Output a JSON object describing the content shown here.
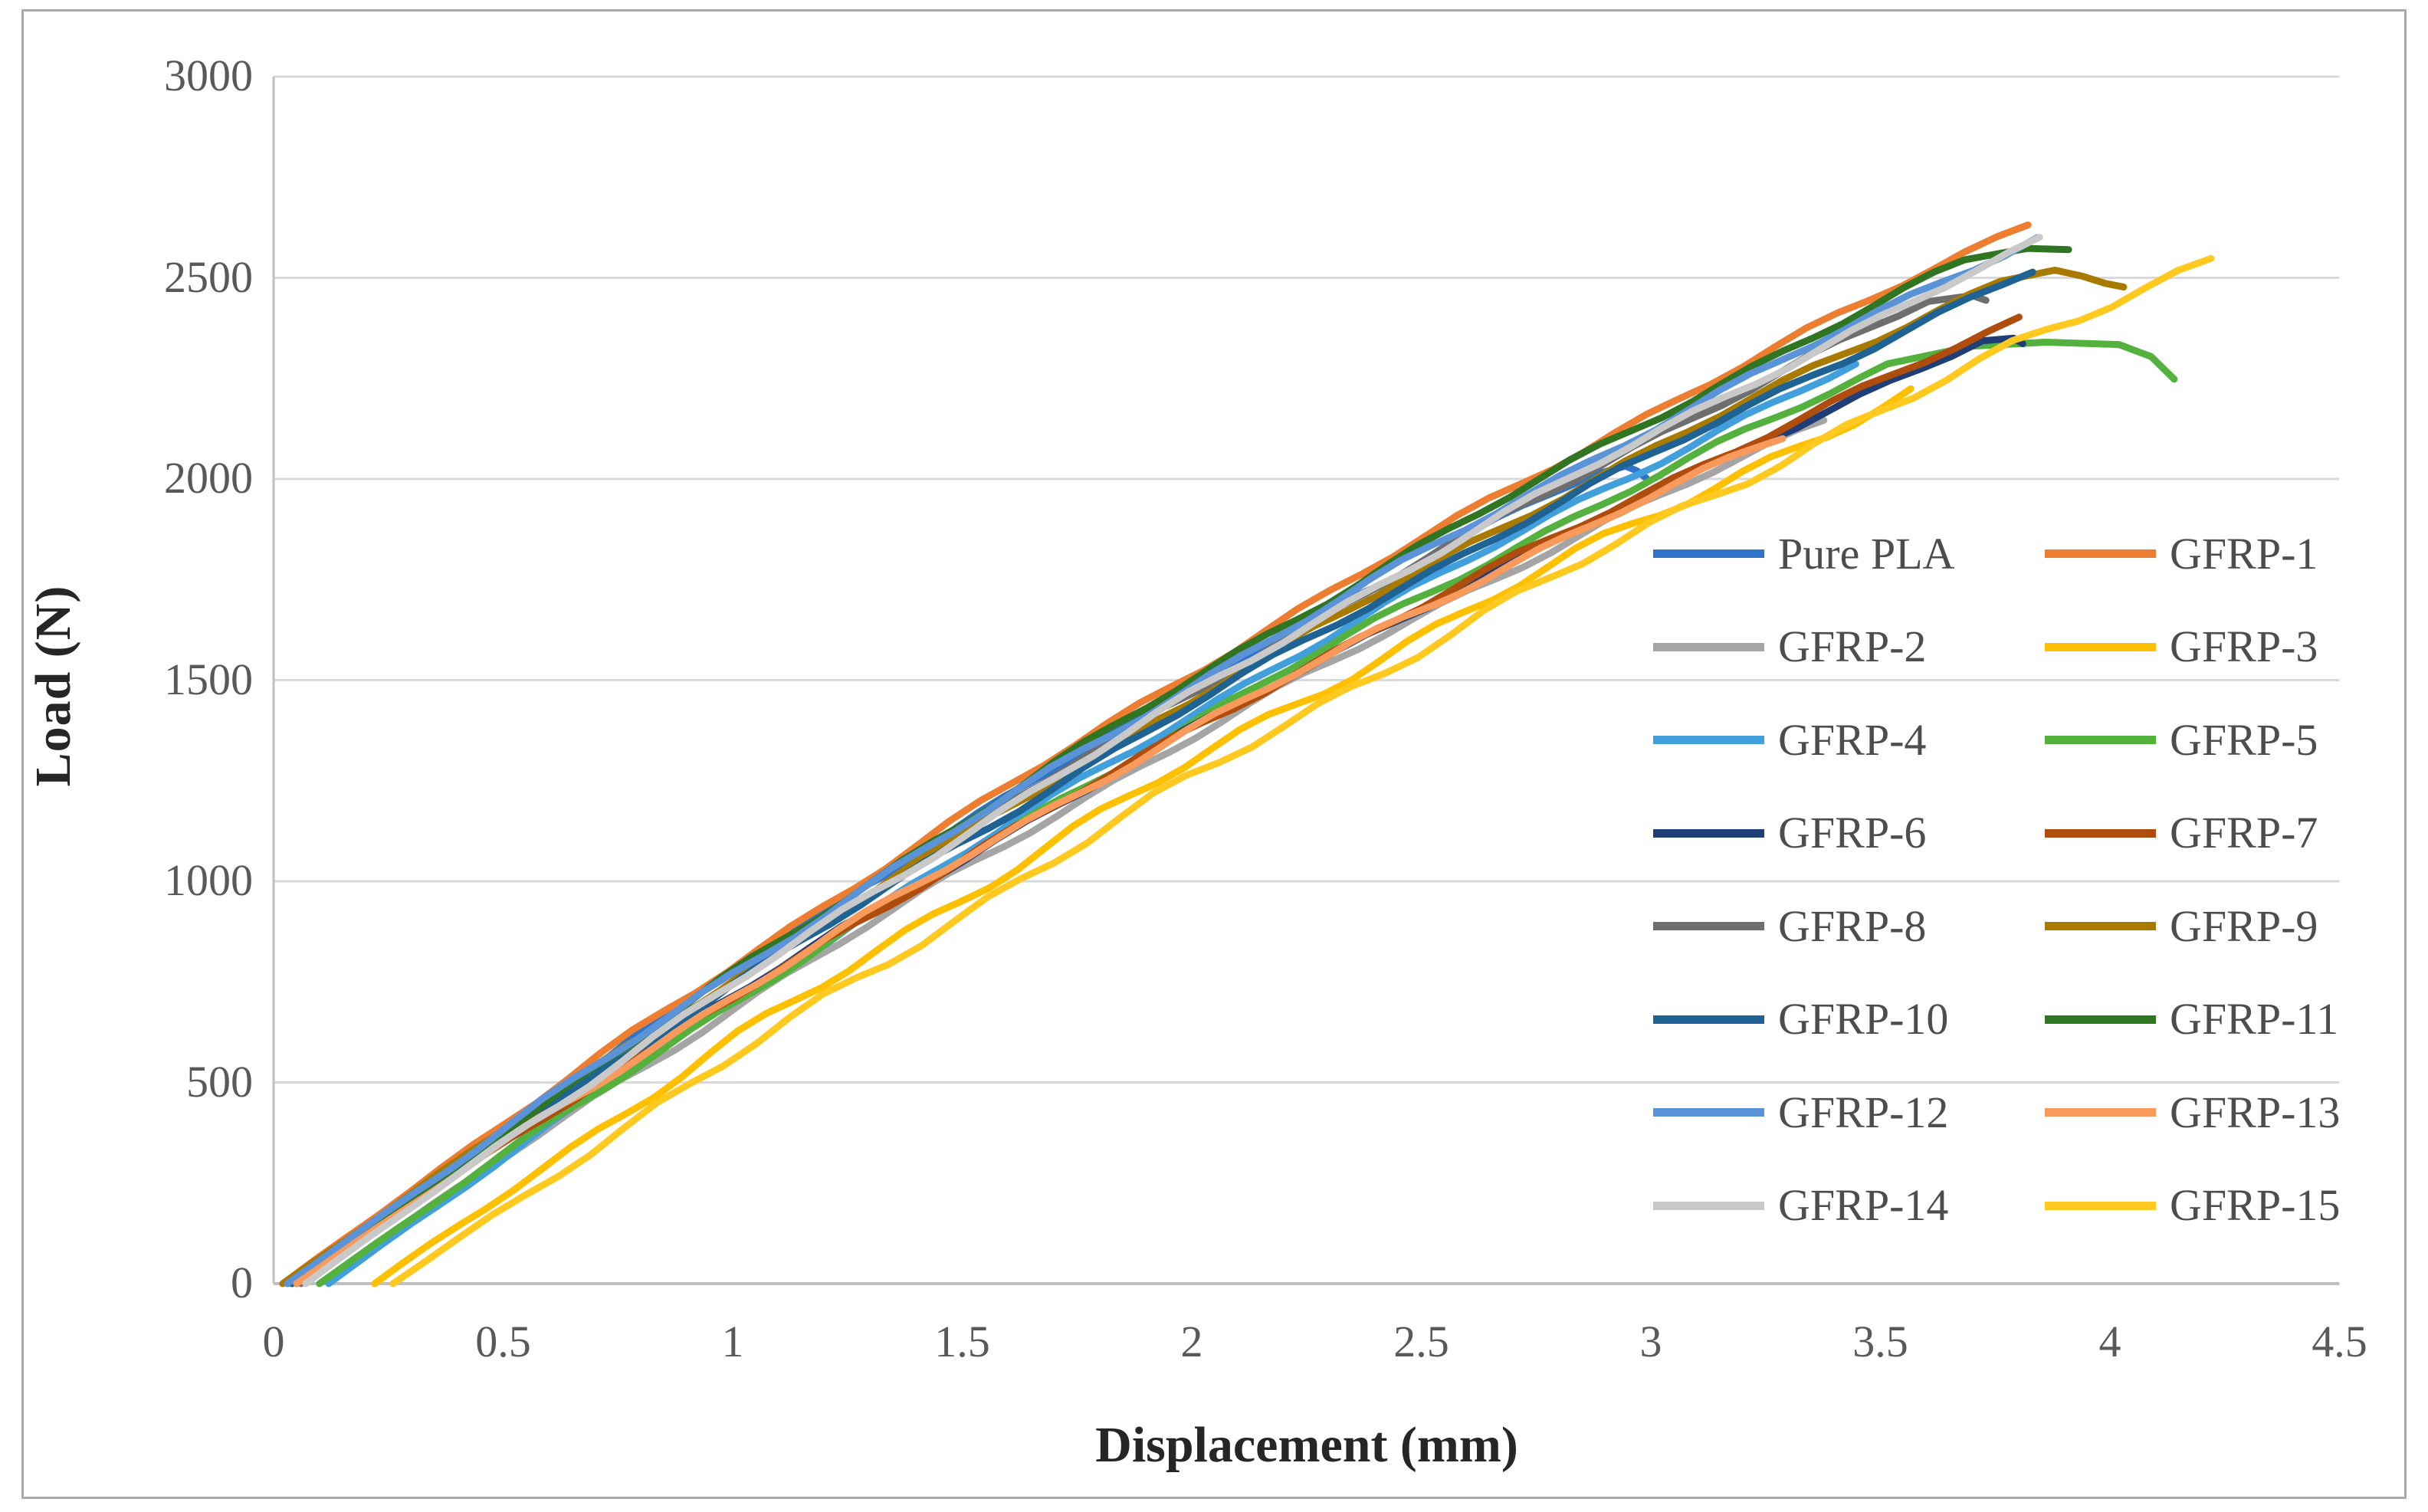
{
  "figure": {
    "background": "#ffffff",
    "border_color": "#a9a9a9",
    "gridline_color": "#d9d9d9",
    "axis_line_color": "#bfbfbf",
    "tick_text_color": "#595959",
    "title_text_color": "#262626",
    "legend_text_color": "#4d4d4d"
  },
  "chart_data": {
    "type": "line",
    "title": "",
    "xlabel": "Displacement (mm)",
    "ylabel": "Load (N)",
    "xlim": [
      0,
      4.5
    ],
    "ylim": [
      0,
      3000
    ],
    "x_ticks": [
      0,
      0.5,
      1,
      1.5,
      2,
      2.5,
      3,
      3.5,
      4,
      4.5
    ],
    "x_tick_labels": [
      "0",
      "0.5",
      "1",
      "1.5",
      "2",
      "2.5",
      "3",
      "3.5",
      "4",
      "4.5"
    ],
    "y_ticks": [
      0,
      500,
      1000,
      1500,
      2000,
      2500,
      3000
    ],
    "y_tick_labels": [
      "0",
      "500",
      "1000",
      "1500",
      "2000",
      "2500",
      "3000"
    ],
    "grid": "horizontal",
    "legend_position": "inside-right",
    "curve_model_note": "Curves rise almost linearly from origin with slight concave-down curvature y = y_end * t * (1.22 - 0.22 t), t = (x - x_start)/(x_end - x_start); tail points capture peaks, plateaus and drops read from the image.",
    "series": [
      {
        "name": "Pure PLA",
        "color": "#2e74c8",
        "x_start": 0.05,
        "x_end": 2.9,
        "y_end": 2028,
        "end_point": [
          2.99,
          2002
        ],
        "tail": [
          [
            2.945,
            2032
          ],
          [
            2.97,
            2020
          ],
          [
            2.99,
            2002
          ]
        ],
        "jitter_amp": 7,
        "phase": 0.3
      },
      {
        "name": "GFRP-1",
        "color": "#ed7d31",
        "x_start": 0.02,
        "x_end": 3.86,
        "y_end": 2657,
        "end_point": [
          3.86,
          2657
        ],
        "tail": [],
        "jitter_amp": 7,
        "phase": 1.1
      },
      {
        "name": "GFRP-2",
        "color": "#a5a5a5",
        "x_start": 0.1,
        "x_end": 3.41,
        "y_end": 2162,
        "end_point": [
          3.41,
          2162
        ],
        "tail": [],
        "jitter_amp": 7,
        "phase": 2.0
      },
      {
        "name": "GFRP-3",
        "color": "#ffc000",
        "x_start": 0.22,
        "x_end": 3.6,
        "y_end": 2230,
        "end_point": [
          3.6,
          2230
        ],
        "tail": [],
        "jitter_amp": 12,
        "phase": 2.9
      },
      {
        "name": "GFRP-4",
        "color": "#41a0dc",
        "x_start": 0.12,
        "x_end": 3.48,
        "y_end": 2303,
        "end_point": [
          3.48,
          2303
        ],
        "tail": [],
        "jitter_amp": 7,
        "phase": 3.7
      },
      {
        "name": "GFRP-5",
        "color": "#55b13e",
        "x_start": 0.1,
        "x_end": 3.55,
        "y_end": 2300,
        "end_point": [
          4.14,
          2248
        ],
        "tail": [
          [
            3.7,
            2330
          ],
          [
            3.86,
            2340
          ],
          [
            4.02,
            2334
          ],
          [
            4.09,
            2304
          ],
          [
            4.14,
            2248
          ]
        ],
        "jitter_amp": 7,
        "phase": 4.5
      },
      {
        "name": "GFRP-6",
        "color": "#1f3e78",
        "x_start": 0.03,
        "x_end": 3.76,
        "y_end": 2362,
        "end_point": [
          3.81,
          2336
        ],
        "tail": [
          [
            3.79,
            2350
          ],
          [
            3.81,
            2336
          ]
        ],
        "jitter_amp": 7,
        "phase": 5.3
      },
      {
        "name": "GFRP-7",
        "color": "#ae4d0e",
        "x_start": 0.04,
        "x_end": 3.84,
        "y_end": 2415,
        "end_point": [
          3.84,
          2415
        ],
        "tail": [],
        "jitter_amp": 7,
        "phase": 6.1
      },
      {
        "name": "GFRP-8",
        "color": "#6e6e6e",
        "x_start": 0.06,
        "x_end": 3.64,
        "y_end": 2462,
        "end_point": [
          3.73,
          2444
        ],
        "tail": [
          [
            3.7,
            2456
          ],
          [
            3.73,
            2444
          ]
        ],
        "jitter_amp": 7,
        "phase": 0.8
      },
      {
        "name": "GFRP-9",
        "color": "#a87b00",
        "x_start": 0.02,
        "x_end": 3.8,
        "y_end": 2512,
        "end_point": [
          4.03,
          2477
        ],
        "tail": [
          [
            3.88,
            2519
          ],
          [
            3.94,
            2504
          ],
          [
            3.99,
            2486
          ],
          [
            4.03,
            2477
          ]
        ],
        "jitter_amp": 7,
        "phase": 1.6
      },
      {
        "name": "GFRP-10",
        "color": "#1f6394",
        "x_start": 0.04,
        "x_end": 3.87,
        "y_end": 2537,
        "end_point": [
          3.87,
          2537
        ],
        "tail": [],
        "jitter_amp": 7,
        "phase": 2.4
      },
      {
        "name": "GFRP-11",
        "color": "#2f7522",
        "x_start": 0.05,
        "x_end": 3.72,
        "y_end": 2560,
        "end_point": [
          3.91,
          2570
        ],
        "tail": [
          [
            3.82,
            2573
          ],
          [
            3.91,
            2570
          ]
        ],
        "jitter_amp": 7,
        "phase": 3.2
      },
      {
        "name": "GFRP-12",
        "color": "#5b93d8",
        "x_start": 0.03,
        "x_end": 3.88,
        "y_end": 2623,
        "end_point": [
          3.88,
          2623
        ],
        "tail": [],
        "jitter_amp": 7,
        "phase": 4.0
      },
      {
        "name": "GFRP-13",
        "color": "#f79a5c",
        "x_start": 0.05,
        "x_end": 3.32,
        "y_end": 2122,
        "end_point": [
          3.32,
          2122
        ],
        "tail": [],
        "jitter_amp": 7,
        "phase": 4.8
      },
      {
        "name": "GFRP-14",
        "color": "#c9c9c9",
        "x_start": 0.07,
        "x_end": 3.885,
        "y_end": 2612,
        "end_point": [
          3.885,
          2612
        ],
        "tail": [],
        "jitter_amp": 7,
        "phase": 5.6
      },
      {
        "name": "GFRP-15",
        "color": "#ffc91f",
        "x_start": 0.26,
        "x_end": 4.26,
        "y_end": 2570,
        "end_point": [
          4.26,
          2570
        ],
        "tail": [],
        "jitter_amp": 12,
        "phase": 0.1
      }
    ]
  },
  "legend": {
    "rows": [
      [
        "Pure PLA",
        "GFRP-1"
      ],
      [
        "GFRP-2",
        "GFRP-3"
      ],
      [
        "GFRP-4",
        "GFRP-5"
      ],
      [
        "GFRP-6",
        "GFRP-7"
      ],
      [
        "GFRP-8",
        "GFRP-9"
      ],
      [
        "GFRP-10",
        "GFRP-11"
      ],
      [
        "GFRP-12",
        "GFRP-13"
      ],
      [
        "GFRP-14",
        "GFRP-15"
      ]
    ]
  }
}
